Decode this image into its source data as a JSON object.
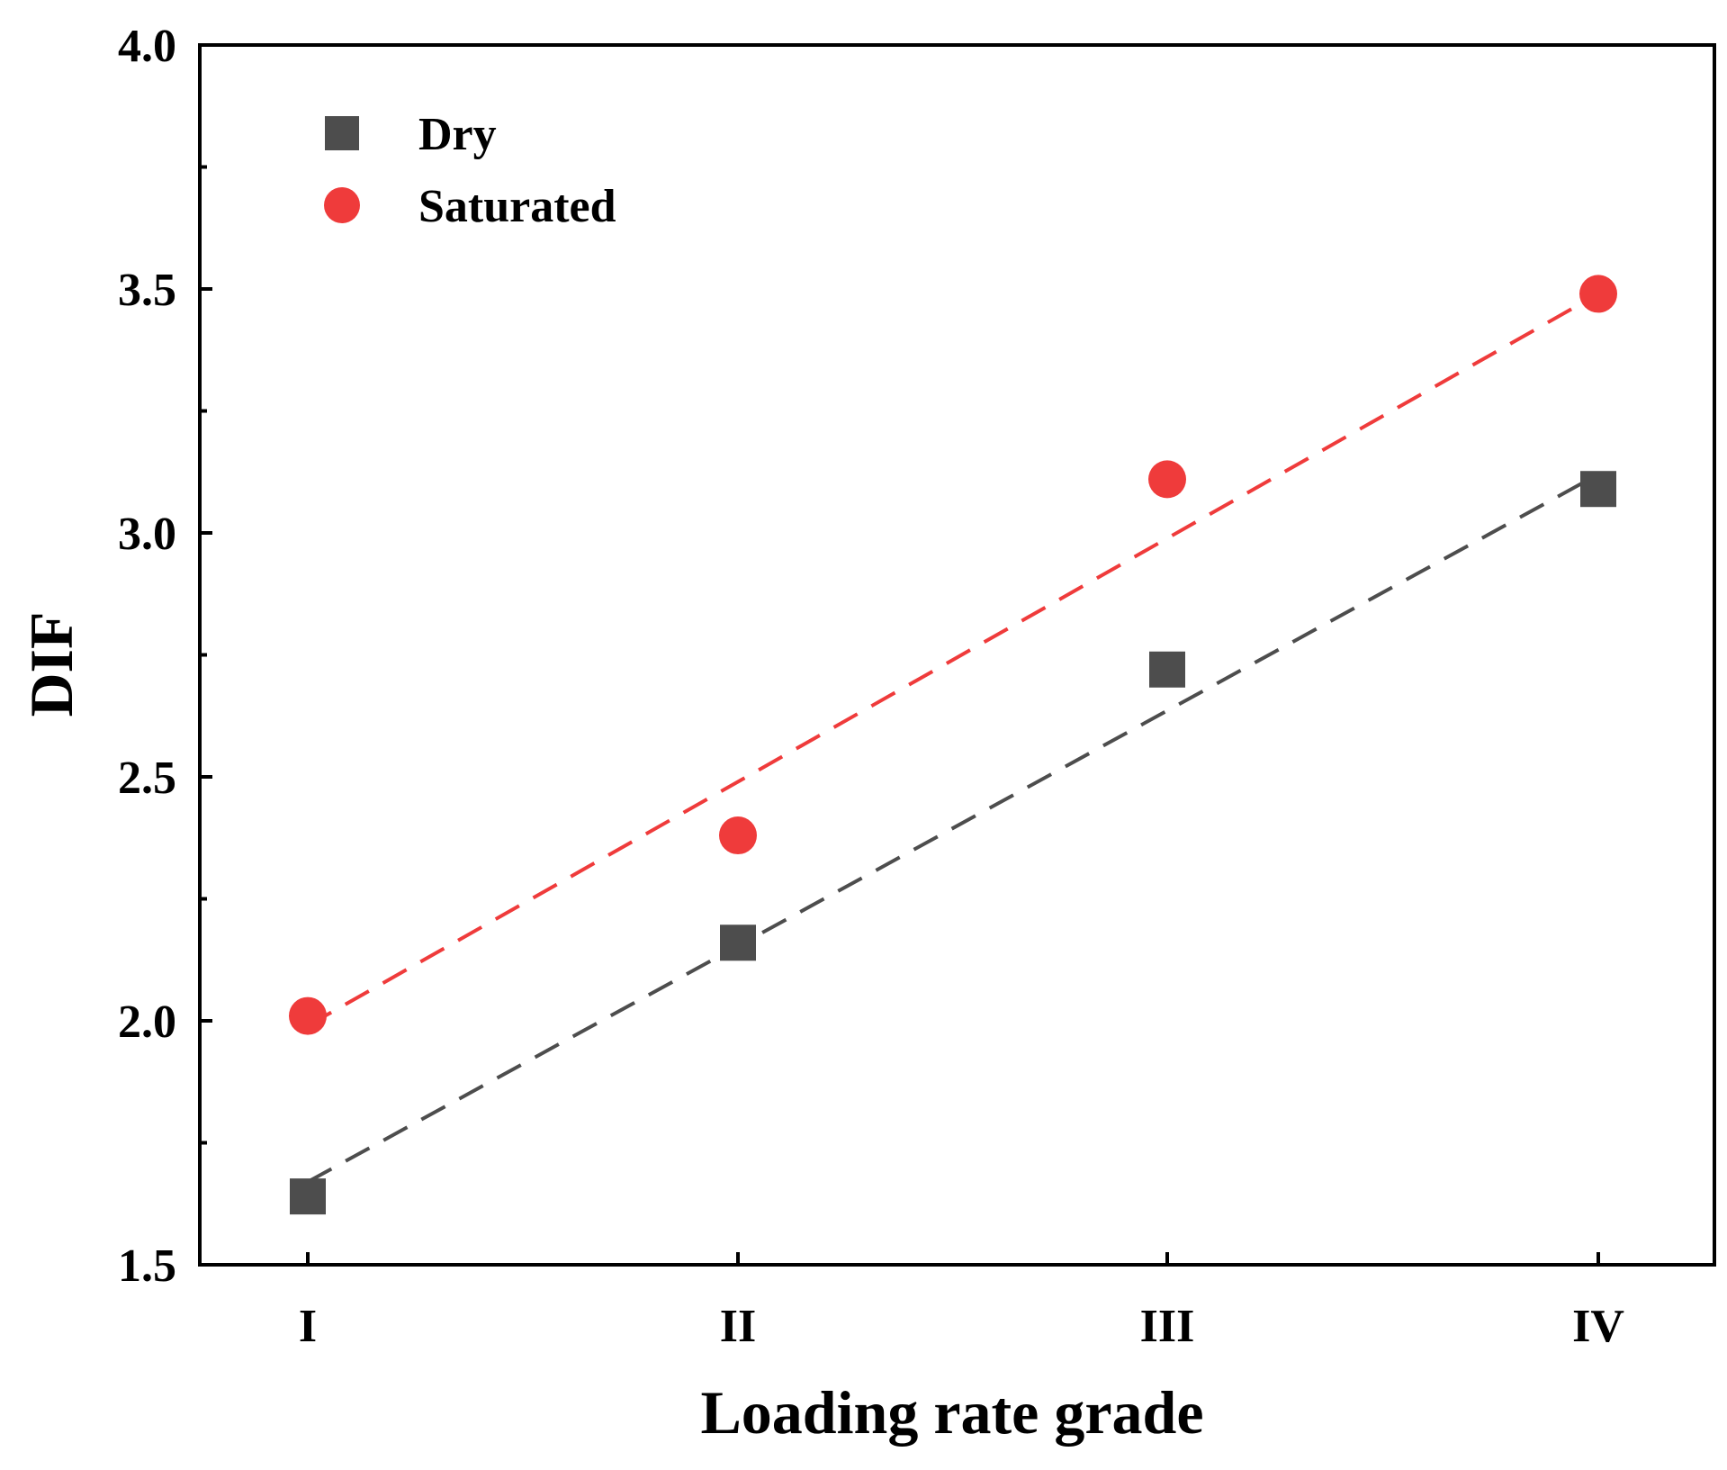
{
  "chart_data": {
    "type": "scatter",
    "title": "",
    "xlabel": "Loading rate grade",
    "ylabel": "DIF",
    "categories": [
      "I",
      "II",
      "III",
      "IV"
    ],
    "ylim": [
      1.5,
      4.0
    ],
    "yticks": [
      "1.5",
      "2.0",
      "2.5",
      "3.0",
      "3.5",
      "4.0"
    ],
    "ytick_values": [
      1.5,
      2.0,
      2.5,
      3.0,
      3.5,
      4.0
    ],
    "grid": false,
    "legend_position": "top-left",
    "series": [
      {
        "name": "Dry",
        "marker": "square",
        "color": "#4d4d4d",
        "values": [
          1.64,
          2.16,
          2.72,
          3.09
        ],
        "fit": {
          "style": "dashed",
          "start": 1.67,
          "end": 3.12
        }
      },
      {
        "name": "Saturated",
        "marker": "circle",
        "color": "#ef3b3b",
        "values": [
          2.01,
          2.38,
          3.11,
          3.49
        ],
        "fit": {
          "style": "dashed",
          "start": 1.99,
          "end": 3.49
        }
      }
    ]
  }
}
